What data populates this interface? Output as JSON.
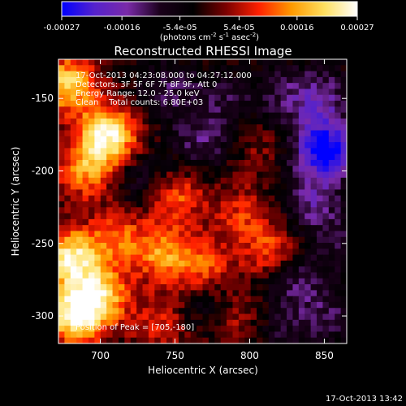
{
  "chart_data": {
    "type": "heatmap",
    "title": "Reconstructed RHESSI Image",
    "xlabel": "Heliocentric X (arcsec)",
    "ylabel": "Heliocentric Y (arcsec)",
    "xlim": [
      672,
      865
    ],
    "ylim": [
      -319,
      -123
    ],
    "x_ticks": [
      700,
      750,
      800,
      850
    ],
    "y_ticks": [
      -300,
      -250,
      -200,
      -150
    ],
    "colorbar": {
      "range": [
        -0.00027,
        0.00027
      ],
      "tick_values": [
        -0.00027,
        -0.00016,
        -5.4e-05,
        5.4e-05,
        0.00016,
        0.00027
      ],
      "tick_labels": [
        "-0.00027",
        "-0.00016",
        "-5.4e-05",
        "5.4e-05",
        "0.00016",
        "0.00027"
      ],
      "unit_parts": [
        "(photons cm",
        "-2",
        " s",
        "-1",
        " asec",
        "-2",
        ")"
      ],
      "colors": [
        "#0000ff",
        "#5522cc",
        "#7a2aa8",
        "#1a001a",
        "#000000",
        "#7a0000",
        "#ff2000",
        "#ff9a00",
        "#ffe060",
        "#ffffff"
      ]
    },
    "annotations": [
      "17-Oct-2013 04:23:08.000 to 04:27:12.000",
      "Detectors: 3F 5F 6F 7F 8F 9F, Att 0",
      "Energy Range: 12.0 - 25.0 keV",
      "Clean    Total counts: 6.80E+03"
    ],
    "peak_label": "Position of Peak = [705,-180]",
    "peak_position": [
      705,
      -180
    ],
    "grid": false,
    "z_description": "image intensity, sampled as anchor values in data coordinates",
    "sources": [
      {
        "x": 705,
        "y": -175,
        "value": 0.00027
      },
      {
        "x": 678,
        "y": -140,
        "value": 0.00022
      },
      {
        "x": 690,
        "y": -200,
        "value": 0.00016
      },
      {
        "x": 680,
        "y": -260,
        "value": 0.00025
      },
      {
        "x": 683,
        "y": -300,
        "value": 0.00026
      },
      {
        "x": 700,
        "y": -285,
        "value": 0.0002
      },
      {
        "x": 712,
        "y": -245,
        "value": 0.00012
      },
      {
        "x": 750,
        "y": -218,
        "value": 0.00014
      },
      {
        "x": 742,
        "y": -258,
        "value": 0.00016
      },
      {
        "x": 770,
        "y": -265,
        "value": 0.00012
      },
      {
        "x": 795,
        "y": -230,
        "value": 0.0001
      },
      {
        "x": 815,
        "y": -255,
        "value": 0.00012
      },
      {
        "x": 805,
        "y": -185,
        "value": 5e-05
      },
      {
        "x": 740,
        "y": -305,
        "value": 0.0001
      },
      {
        "x": 790,
        "y": -305,
        "value": 8e-05
      },
      {
        "x": 850,
        "y": -185,
        "value": -0.00027
      },
      {
        "x": 848,
        "y": -150,
        "value": -0.00012
      },
      {
        "x": 842,
        "y": -222,
        "value": -0.00012
      },
      {
        "x": 832,
        "y": -275,
        "value": -0.0001
      },
      {
        "x": 852,
        "y": -300,
        "value": -8e-05
      },
      {
        "x": 768,
        "y": -180,
        "value": -0.0001
      },
      {
        "x": 745,
        "y": -145,
        "value": -9e-05
      },
      {
        "x": 782,
        "y": -150,
        "value": -7e-05
      },
      {
        "x": 822,
        "y": -148,
        "value": -8e-05
      },
      {
        "x": 770,
        "y": -295,
        "value": -6e-05
      },
      {
        "x": 730,
        "y": -208,
        "value": -8e-05
      },
      {
        "x": 820,
        "y": -310,
        "value": -6e-05
      },
      {
        "x": 860,
        "y": -250,
        "value": -6e-05
      }
    ]
  },
  "footer": {
    "timestamp": "17-Oct-2013 13:42"
  }
}
